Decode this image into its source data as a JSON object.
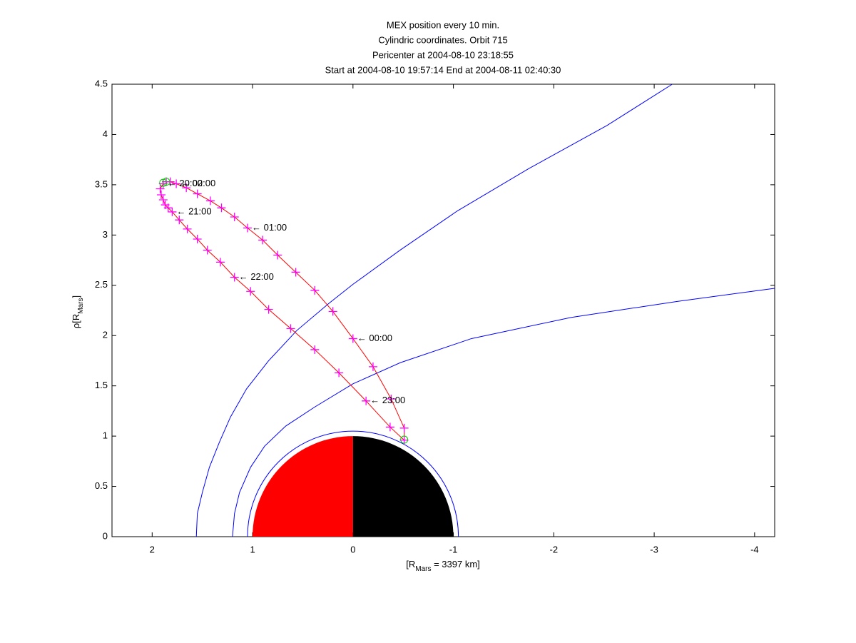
{
  "chart_data": {
    "type": "line",
    "title": [
      "MEX position every 10 min.",
      "Cylindric coordinates. Orbit 715",
      "Pericenter at 2004-08-10 23:18:55",
      "Start at 2004-08-10 19:57:14 End at 2004-08-11 02:40:30"
    ],
    "xlabel": {
      "text": "[R",
      "sub": "Mars",
      "rest": " = 3397 km]"
    },
    "ylabel": {
      "text": "ρ[R",
      "sub": "Mars",
      "rest": "]"
    },
    "xlim": [
      2.4,
      -4.2
    ],
    "ylim": [
      0,
      4.5
    ],
    "xticks": [
      2,
      1,
      0,
      -1,
      -2,
      -3,
      -4
    ],
    "yticks": [
      0,
      0.5,
      1,
      1.5,
      2,
      2.5,
      3,
      3.5,
      4,
      4.5
    ],
    "orbit": {
      "color": "#ff0000",
      "marker_color": "#ff00ff",
      "x": [
        1.89,
        1.92,
        1.91,
        1.89,
        1.87,
        1.84,
        1.8,
        1.73,
        1.65,
        1.55,
        1.45,
        1.32,
        1.18,
        1.02,
        0.84,
        0.62,
        0.38,
        0.14,
        -0.13,
        -0.37,
        -0.51,
        -0.51,
        -0.38,
        -0.2,
        0,
        0.2,
        0.38,
        0.57,
        0.75,
        0.9,
        1.05,
        1.18,
        1.31,
        1.42,
        1.55,
        1.66,
        1.76,
        1.82,
        1.86
      ],
      "y": [
        3.51,
        3.46,
        3.4,
        3.35,
        3.3,
        3.27,
        3.23,
        3.15,
        3.06,
        2.96,
        2.85,
        2.73,
        2.58,
        2.44,
        2.26,
        2.07,
        1.86,
        1.63,
        1.35,
        1.09,
        0.96,
        1.08,
        1.37,
        1.69,
        1.97,
        2.24,
        2.45,
        2.63,
        2.8,
        2.95,
        3.07,
        3.18,
        3.27,
        3.34,
        3.41,
        3.47,
        3.51,
        3.53,
        3.53
      ]
    },
    "boundaries": [
      {
        "color": "#0000ff",
        "x": [
          1.56,
          1.55,
          1.5,
          1.43,
          1.33,
          1.22,
          1.06,
          0.84,
          0.56,
          0.24,
          0,
          -0.47,
          -1.04,
          -1.75,
          -2.53,
          -3.18
        ],
        "y": [
          0,
          0.23,
          0.44,
          0.69,
          0.94,
          1.19,
          1.47,
          1.75,
          2.05,
          2.32,
          2.51,
          2.85,
          3.24,
          3.66,
          4.09,
          4.5
        ]
      },
      {
        "color": "#0000ff",
        "x": [
          1.2,
          1.18,
          1.13,
          1.02,
          0.88,
          0.67,
          0.38,
          0,
          -0.47,
          -1.18,
          -2.17,
          -3.23,
          -4.2
        ],
        "y": [
          0,
          0.23,
          0.44,
          0.69,
          0.9,
          1.1,
          1.29,
          1.52,
          1.73,
          1.97,
          2.18,
          2.34,
          2.47
        ]
      }
    ],
    "mars": {
      "radius": 1,
      "day_color": "#ff0000",
      "night_color": "#000000",
      "outline_radius": 1.05,
      "outline_color": "#0000ff"
    },
    "events": [
      {
        "x": 1.89,
        "y": 3.52,
        "color": "#00cc00"
      },
      {
        "x": -0.51,
        "y": 0.965,
        "color": "#00cc00"
      },
      {
        "x": 1.86,
        "y": 3.53,
        "color": "#00cc00"
      }
    ],
    "annotations": [
      {
        "text": "← 20:00",
        "x": 1.89,
        "y": 3.51
      },
      {
        "text": "← 21:00",
        "x": 1.8,
        "y": 3.23
      },
      {
        "text": "← 22:00",
        "x": 1.18,
        "y": 2.58
      },
      {
        "text": "← 23:00",
        "x": -0.13,
        "y": 1.35
      },
      {
        "text": "← 00:00",
        "x": 0,
        "y": 1.97
      },
      {
        "text": "← 01:00",
        "x": 1.05,
        "y": 3.07
      },
      {
        "text": "← 02:00",
        "x": 1.76,
        "y": 3.51
      }
    ]
  }
}
